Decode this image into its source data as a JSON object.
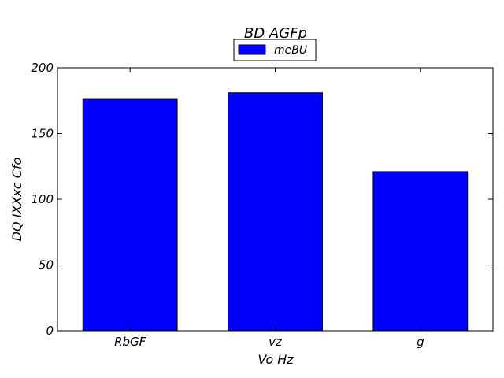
{
  "chart_data": {
    "type": "bar",
    "title": "BD AGFp",
    "xlabel": "Vo Hz",
    "ylabel": "DQ IXXxc Cfo",
    "categories": [
      "RbGF",
      "vz",
      "g"
    ],
    "series": [
      {
        "name": "meBU",
        "values": [
          176,
          181,
          121
        ],
        "color": "#0000ff"
      }
    ],
    "ylim": [
      0,
      200
    ],
    "yticks": [
      0,
      50,
      100,
      150,
      200
    ],
    "grid": false,
    "legend_position": "top-center"
  }
}
